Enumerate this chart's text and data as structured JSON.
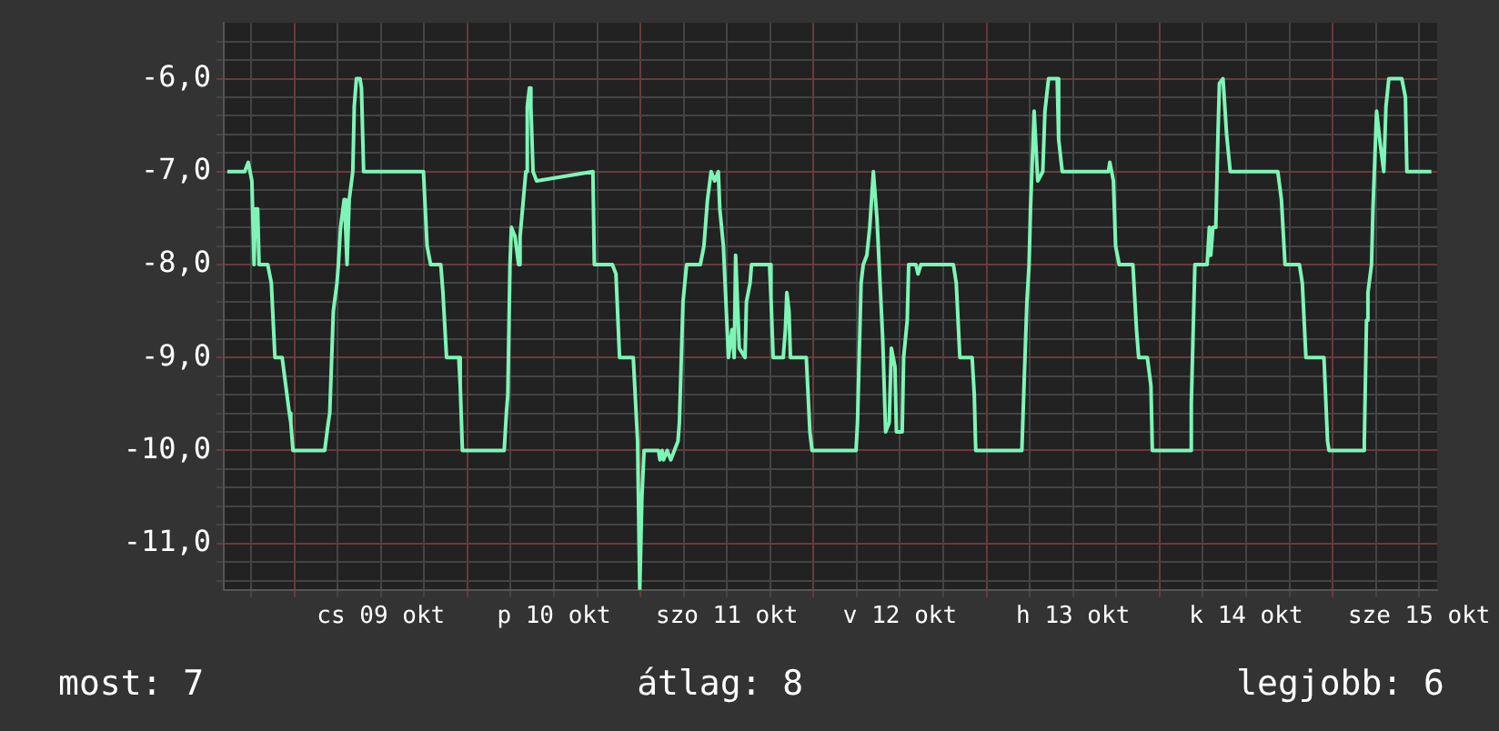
{
  "chart_data": {
    "type": "line",
    "x": [
      "--10-08T14:42",
      "--10-08T17:06",
      "--10-08T17:36",
      "--10-08T18:06",
      "--10-08T18:24",
      "--10-08T18:36",
      "--10-08T18:54",
      "--10-08T19:06",
      "--10-08T20:18",
      "--10-08T20:48",
      "--10-08T21:18",
      "--10-08T22:18",
      "--10-08T22:48",
      "--10-08T23:18",
      "--10-08T23:30",
      "--10-08T23:48",
      "--10-09T04:12",
      "--10-09T04:42",
      "--10-09T04:54",
      "--10-09T05:24",
      "--10-09T05:54",
      "--10-09T06:06",
      "--10-09T06:24",
      "--10-09T06:54",
      "--10-09T07:06",
      "--10-09T07:18",
      "--10-09T07:36",
      "--10-09T08:06",
      "--10-09T08:18",
      "--10-09T08:36",
      "--10-09T09:06",
      "--10-09T09:18",
      "--10-09T09:36",
      "--10-09T17:54",
      "--10-09T18:24",
      "--10-09T18:54",
      "--10-09T20:18",
      "--10-09T20:36",
      "--10-09T21:06",
      "--10-09T22:48",
      "--10-09T23:00",
      "--10-09T23:18",
      "--10-10T05:06",
      "--10-10T05:24",
      "--10-10T05:36",
      "--10-10T05:54",
      "--10-10T06:06",
      "--10-10T06:36",
      "--10-10T07:06",
      "--10-10T07:18",
      "--10-10T08:06",
      "--10-10T08:18",
      "--10-10T08:36",
      "--10-10T08:48",
      "--10-10T09:06",
      "--10-10T09:36",
      "--10-10T17:24",
      "--10-10T17:36",
      "--10-10T20:06",
      "--10-10T20:36",
      "--10-10T21:06",
      "--10-10T23:00",
      "--10-10T23:36",
      "--10-10T23:54",
      "--10-11T00:12",
      "--10-11T00:30",
      "--10-11T02:30",
      "--10-11T02:42",
      "--10-11T03:00",
      "--10-11T03:12",
      "--10-11T03:42",
      "--10-11T04:12",
      "--10-11T04:42",
      "--10-11T05:12",
      "--10-11T05:24",
      "--10-11T05:54",
      "--10-11T06:24",
      "--10-11T08:18",
      "--10-11T08:48",
      "--10-11T09:18",
      "--10-11T09:48",
      "--10-11T10:18",
      "--10-11T10:48",
      "--10-11T11:00",
      "--10-11T11:30",
      "--10-11T12:12",
      "--10-11T12:42",
      "--10-11T13:00",
      "--10-11T13:12",
      "--10-11T13:42",
      "--10-11T14:30",
      "--10-11T14:42",
      "--10-11T15:12",
      "--10-11T15:24",
      "--10-11T17:54",
      "--10-11T18:06",
      "--10-11T18:24",
      "--10-11T19:48",
      "--10-11T20:06",
      "--10-11T20:18",
      "--10-11T20:36",
      "--10-11T20:48",
      "--10-11T23:00",
      "--10-11T23:30",
      "--10-11T23:48",
      "--10-12T05:54",
      "--10-12T06:06",
      "--10-12T06:36",
      "--10-12T06:54",
      "--10-12T07:24",
      "--10-12T07:48",
      "--10-12T08:18",
      "--10-12T08:36",
      "--10-12T08:48",
      "--10-12T09:36",
      "--10-12T10:00",
      "--10-12T10:30",
      "--10-12T10:48",
      "--10-12T11:18",
      "--10-12T11:30",
      "--10-12T12:18",
      "--10-12T12:30",
      "--10-12T13:00",
      "--10-12T13:12",
      "--10-12T14:12",
      "--10-12T14:30",
      "--10-12T14:54",
      "--10-12T19:24",
      "--10-12T19:48",
      "--10-12T20:18",
      "--10-12T22:00",
      "--10-12T22:18",
      "--10-12T22:30",
      "--10-13T04:54",
      "--10-13T05:12",
      "--10-13T05:36",
      "--10-13T05:54",
      "--10-13T06:06",
      "--10-13T06:36",
      "--10-13T07:06",
      "--10-13T07:48",
      "--10-13T08:06",
      "--10-13T08:36",
      "--10-13T09:48",
      "--10-13T10:00",
      "--10-13T10:30",
      "--10-13T16:54",
      "--10-13T17:06",
      "--10-13T17:36",
      "--10-13T17:54",
      "--10-13T18:24",
      "--10-13T20:18",
      "--10-13T20:48",
      "--10-13T21:06",
      "--10-13T22:18",
      "--10-13T22:48",
      "--10-13T23:00",
      "--10-14T04:12",
      "--10-14T04:24",
      "--10-14T04:54",
      "--10-14T06:36",
      "--10-14T06:54",
      "--10-14T07:06",
      "--10-14T07:24",
      "--10-14T07:48",
      "--10-14T08:06",
      "--10-14T08:18",
      "--10-14T08:48",
      "--10-14T09:18",
      "--10-14T09:48",
      "--10-14T16:24",
      "--10-14T16:54",
      "--10-14T17:24",
      "--10-14T19:24",
      "--10-14T19:48",
      "--10-14T20:18",
      "--10-14T22:48",
      "--10-14T23:18",
      "--10-14T23:30",
      "--10-15T04:12",
      "--10-15T04:24",
      "--10-15T04:42",
      "--10-15T04:54",
      "--10-15T05:24",
      "--10-15T05:36",
      "--10-15T06:06",
      "--10-15T06:36",
      "--10-15T07:06",
      "--10-15T07:24",
      "--10-15T07:48",
      "--10-15T09:36",
      "--10-15T10:06",
      "--10-15T10:18",
      "--10-15T13:42"
    ],
    "series": [
      {
        "color": "#7ef5b6",
        "values": [
          -7,
          -7,
          -6.9,
          -7.1,
          -8,
          -7.4,
          -7.4,
          -8,
          -8,
          -8.2,
          -9,
          -9,
          -9.3,
          -9.6,
          -9.7,
          -10,
          -10,
          -9.7,
          -9.6,
          -8.5,
          -8.2,
          -8,
          -7.6,
          -7.3,
          -7.6,
          -8,
          -7.3,
          -7,
          -6.3,
          -6,
          -6,
          -6.1,
          -7,
          -7,
          -7.8,
          -8,
          -8,
          -8.3,
          -9,
          -9,
          -9.3,
          -10,
          -10,
          -9.6,
          -9.4,
          -8,
          -7.6,
          -7.7,
          -8,
          -7.7,
          -7,
          -6.3,
          -6.1,
          -6.3,
          -7,
          -7.1,
          -7,
          -8,
          -8,
          -8.1,
          -9,
          -9,
          -9.9,
          -11.5,
          -10.5,
          -10,
          -10,
          -10.1,
          -10,
          -10.1,
          -10,
          -10.1,
          -10,
          -9.9,
          -9.7,
          -8.4,
          -8,
          -8,
          -7.8,
          -7.3,
          -7,
          -7.1,
          -7,
          -7.4,
          -7.8,
          -9,
          -8.7,
          -9,
          -7.9,
          -8.9,
          -9,
          -8.4,
          -8.2,
          -8,
          -8,
          -8.35,
          -9,
          -9,
          -8.7,
          -8.3,
          -8.5,
          -9,
          -9,
          -9.8,
          -10,
          -10,
          -9.7,
          -8.2,
          -8,
          -7.9,
          -7.6,
          -7,
          -7.3,
          -7.5,
          -8.8,
          -9.8,
          -9.7,
          -8.9,
          -9.1,
          -9.8,
          -9.8,
          -9,
          -8.6,
          -8,
          -8,
          -8.1,
          -8,
          -8,
          -8.2,
          -9,
          -9,
          -9.4,
          -10,
          -10,
          -9.3,
          -8.4,
          -8,
          -7.4,
          -6.35,
          -7.1,
          -7,
          -6.35,
          -6,
          -6,
          -6.65,
          -7,
          -7,
          -6.9,
          -7.1,
          -7.8,
          -8,
          -8,
          -8.7,
          -9,
          -9,
          -9.3,
          -10,
          -10,
          -9.5,
          -8,
          -8,
          -7.6,
          -7.9,
          -7.6,
          -7.6,
          -6.6,
          -6.05,
          -6,
          -6.6,
          -7,
          -7,
          -7.3,
          -8,
          -8,
          -8.2,
          -9,
          -9,
          -9.9,
          -10,
          -10,
          -9.9,
          -8.6,
          -8.3,
          -8,
          -7.4,
          -6.35,
          -6.7,
          -7,
          -6.3,
          -6,
          -6,
          -6.2,
          -7,
          -7
        ]
      }
    ],
    "xlim": [
      "--10-08T14:12",
      "--10-15T14:30"
    ],
    "xticks": [
      {
        "value": "--10-08T18:00",
        "label": null
      },
      {
        "value": "--10-09T00:00",
        "label": null
      },
      {
        "value": "--10-09T06:00",
        "label": null
      },
      {
        "value": "--10-09T12:00",
        "label": "cs 09 okt"
      },
      {
        "value": "--10-09T18:00",
        "label": null
      },
      {
        "value": "--10-10T00:00",
        "label": null
      },
      {
        "value": "--10-10T06:00",
        "label": null
      },
      {
        "value": "--10-10T12:00",
        "label": "p 10 okt"
      },
      {
        "value": "--10-10T18:00",
        "label": null
      },
      {
        "value": "--10-11T00:00",
        "label": null
      },
      {
        "value": "--10-11T06:00",
        "label": null
      },
      {
        "value": "--10-11T12:00",
        "label": "szo 11 okt"
      },
      {
        "value": "--10-11T18:00",
        "label": null
      },
      {
        "value": "--10-12T00:00",
        "label": null
      },
      {
        "value": "--10-12T06:00",
        "label": null
      },
      {
        "value": "--10-12T12:00",
        "label": "v 12 okt"
      },
      {
        "value": "--10-12T18:00",
        "label": null
      },
      {
        "value": "--10-13T00:00",
        "label": null
      },
      {
        "value": "--10-13T06:00",
        "label": null
      },
      {
        "value": "--10-13T12:00",
        "label": "h 13 okt"
      },
      {
        "value": "--10-13T18:00",
        "label": null
      },
      {
        "value": "--10-14T00:00",
        "label": null
      },
      {
        "value": "--10-14T06:00",
        "label": null
      },
      {
        "value": "--10-14T12:00",
        "label": "k 14 okt"
      },
      {
        "value": "--10-14T18:00",
        "label": null
      },
      {
        "value": "--10-15T00:00",
        "label": null
      },
      {
        "value": "--10-15T06:00",
        "label": null
      },
      {
        "value": "--10-15T12:00",
        "label": "sze 15 okt"
      }
    ],
    "ylim": [
      -11.5,
      -5.4
    ],
    "yticks": [
      {
        "value": -11.4,
        "label": null
      },
      {
        "value": -11.2,
        "label": null
      },
      {
        "value": -11,
        "label": "-11,0"
      },
      {
        "value": -10.8,
        "label": null
      },
      {
        "value": -10.6,
        "label": null
      },
      {
        "value": -10.4,
        "label": null
      },
      {
        "value": -10.2,
        "label": null
      },
      {
        "value": -10,
        "label": "-10,0"
      },
      {
        "value": -9.8,
        "label": null
      },
      {
        "value": -9.6,
        "label": null
      },
      {
        "value": -9.4,
        "label": null
      },
      {
        "value": -9.2,
        "label": null
      },
      {
        "value": -9,
        "label": "-9,0"
      },
      {
        "value": -8.8,
        "label": null
      },
      {
        "value": -8.6,
        "label": null
      },
      {
        "value": -8.4,
        "label": null
      },
      {
        "value": -8.2,
        "label": null
      },
      {
        "value": -8,
        "label": "-8,0"
      },
      {
        "value": -7.8,
        "label": null
      },
      {
        "value": -7.6,
        "label": null
      },
      {
        "value": -7.4,
        "label": null
      },
      {
        "value": -7.2,
        "label": null
      },
      {
        "value": -7,
        "label": "-7,0"
      },
      {
        "value": -6.8,
        "label": null
      },
      {
        "value": -6.6,
        "label": null
      },
      {
        "value": -6.4,
        "label": null
      },
      {
        "value": -6.2,
        "label": null
      },
      {
        "value": -6,
        "label": "-6,0"
      },
      {
        "value": -5.8,
        "label": null
      },
      {
        "value": -5.6,
        "label": null
      }
    ],
    "grid": true,
    "legend": false,
    "annotations": [
      "most: 7",
      "átlag: 8",
      "legjobb: 6"
    ]
  }
}
